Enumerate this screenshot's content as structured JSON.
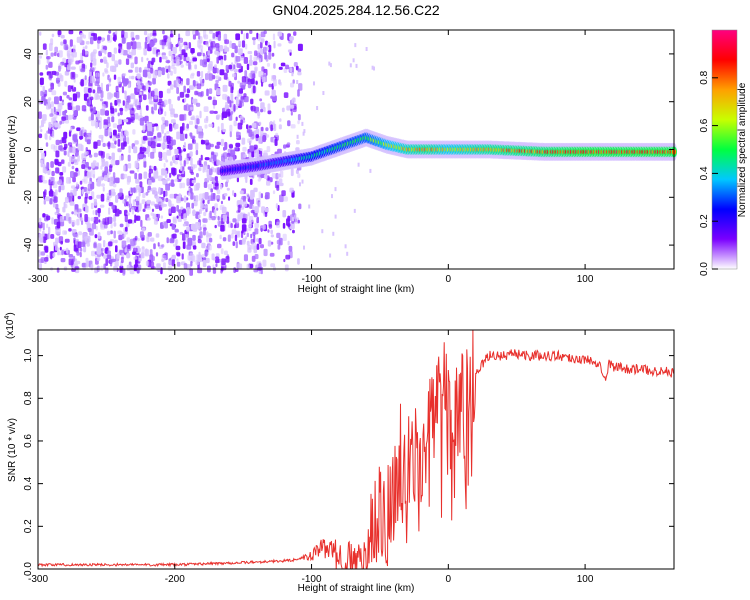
{
  "title": "GN04.2025.284.12.56.C22",
  "chart_data": [
    {
      "type": "heatmap",
      "xlabel": "Height of straight line (km)",
      "ylabel": "Frequency (Hz)",
      "xlim": [
        -300,
        165
      ],
      "ylim": [
        -50,
        50
      ],
      "xticks": [
        -300,
        -200,
        -100,
        0,
        100
      ],
      "yticks": [
        -40,
        -20,
        0,
        20,
        40
      ],
      "colorbar": {
        "label": "Normalized spectral amplitude",
        "range": [
          0,
          1
        ],
        "ticks": [
          "0.0",
          "0.2",
          "0.4",
          "0.6",
          "0.8"
        ],
        "colormap": [
          "#ffffff",
          "#7a00ff",
          "#0000ff",
          "#00c8ff",
          "#00ff40",
          "#c8ff00",
          "#ffa000",
          "#ff0000",
          "#ff0080"
        ]
      },
      "noise_region_x": [
        -300,
        -115
      ],
      "ridge": {
        "x": [
          -165,
          -140,
          -120,
          -100,
          -80,
          -60,
          -45,
          -30,
          -15,
          0,
          30,
          70,
          100,
          130,
          165
        ],
        "freq": [
          -9,
          -7,
          -5,
          -3,
          1,
          5,
          2,
          0,
          0,
          0,
          0,
          -1,
          -1,
          -1,
          -1
        ],
        "amplitude": [
          0.25,
          0.3,
          0.35,
          0.45,
          0.5,
          0.55,
          0.65,
          0.75,
          0.8,
          0.7,
          0.8,
          0.85,
          0.9,
          0.9,
          0.9
        ]
      }
    },
    {
      "type": "line",
      "xlabel": "Height of straight line (km)",
      "ylabel": "SNR (10 * v/v)",
      "yscale_label": "(x10",
      "yscale_exponent": "4",
      "xlim": [
        -300,
        165
      ],
      "ylim": [
        0,
        1.12
      ],
      "xticks": [
        -300,
        -200,
        -100,
        0,
        100
      ],
      "yticks": [
        "0.0",
        "0.2",
        "0.4",
        "0.6",
        "0.8",
        "1.0"
      ],
      "series": [
        {
          "name": "SNR",
          "color": "#e8302c",
          "x": [
            -300,
            -200,
            -150,
            -115,
            -100,
            -95,
            -90,
            -85,
            -80,
            -75,
            -70,
            -60,
            -55,
            -50,
            -45,
            -40,
            -35,
            -30,
            -25,
            -20,
            -15,
            -10,
            -5,
            0,
            10,
            20,
            30,
            40,
            50,
            60,
            80,
            100,
            110,
            115,
            118,
            120,
            130,
            150,
            165
          ],
          "y": [
            0.02,
            0.02,
            0.03,
            0.04,
            0.06,
            0.09,
            0.1,
            0.08,
            0.06,
            0.05,
            0.03,
            0.03,
            0.2,
            0.3,
            0.25,
            0.35,
            0.55,
            0.45,
            0.6,
            0.55,
            0.75,
            0.7,
            0.9,
            0.7,
            0.8,
            0.92,
            1.0,
            1.0,
            1.01,
            1.0,
            1.0,
            0.98,
            0.97,
            0.9,
            0.97,
            0.95,
            0.94,
            0.93,
            0.92
          ]
        }
      ]
    }
  ]
}
